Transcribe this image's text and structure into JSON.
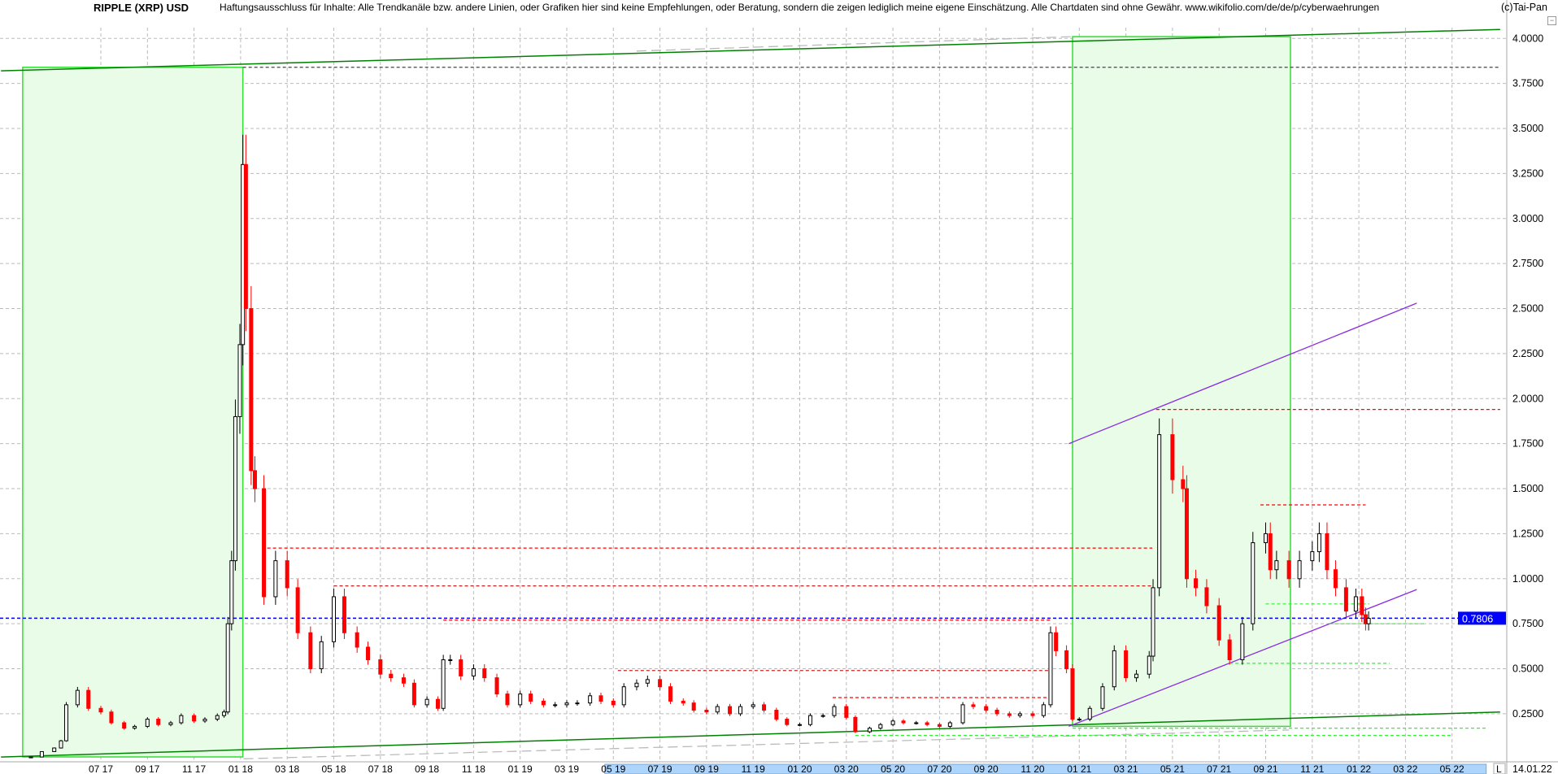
{
  "header": {
    "title": "RIPPLE (XRP) USD",
    "disclaimer": "Haftungsausschluss für Inhalte: Alle Trendkanäle bzw. andere Linien, oder Grafiken hier sind keine Empfehlungen, oder Beratung, sondern die zeigen lediglich meine eigene Einschätzung. Alle Chartdaten sind ohne Gewähr.  www.wikifolio.com/de/de/p/cyberwaehrungen",
    "copyright": "(c)Tai-Pan",
    "minimize_icon": "minus-box-icon"
  },
  "footer": {
    "scale_mode": "L",
    "last_date": "14.01.22"
  },
  "colors": {
    "up_candle": "#ffffff",
    "down_candle": "#ff0000",
    "zone_fill": "#e8fce8",
    "zone_border": "#33dd33",
    "trend_green": "#008000",
    "channel": "#8a2be2",
    "current_price": "#0000ff",
    "level_red": "#ff0000",
    "level_green": "#33ee33",
    "grid": "#bbbbbb",
    "axis_highlight": "#add4fa"
  },
  "chart_data": {
    "type": "candlestick",
    "title": "RIPPLE (XRP) USD",
    "ylim": [
      0,
      4.05
    ],
    "y_ticks": [
      "0.2500",
      "0.5000",
      "0.7500",
      "1.0000",
      "1.2500",
      "1.5000",
      "1.7500",
      "2.0000",
      "2.2500",
      "2.5000",
      "2.7500",
      "3.0000",
      "3.2500",
      "3.5000",
      "3.7500",
      "4.0000"
    ],
    "x_ticks": [
      {
        "date": "2017-07-01",
        "label": "07 17"
      },
      {
        "date": "2017-09-01",
        "label": "09 17"
      },
      {
        "date": "2017-11-01",
        "label": "11 17"
      },
      {
        "date": "2018-01-01",
        "label": "01 18"
      },
      {
        "date": "2018-03-01",
        "label": "03 18"
      },
      {
        "date": "2018-05-01",
        "label": "05 18"
      },
      {
        "date": "2018-07-01",
        "label": "07 18"
      },
      {
        "date": "2018-09-01",
        "label": "09 18"
      },
      {
        "date": "2018-11-01",
        "label": "11 18"
      },
      {
        "date": "2019-01-01",
        "label": "01 19"
      },
      {
        "date": "2019-03-01",
        "label": "03 19"
      },
      {
        "date": "2019-05-01",
        "label": "05 19"
      },
      {
        "date": "2019-07-01",
        "label": "07 19"
      },
      {
        "date": "2019-09-01",
        "label": "09 19"
      },
      {
        "date": "2019-11-01",
        "label": "11 19"
      },
      {
        "date": "2020-01-01",
        "label": "01 20"
      },
      {
        "date": "2020-03-01",
        "label": "03 20"
      },
      {
        "date": "2020-05-01",
        "label": "05 20"
      },
      {
        "date": "2020-07-01",
        "label": "07 20"
      },
      {
        "date": "2020-09-01",
        "label": "09 20"
      },
      {
        "date": "2020-11-01",
        "label": "11 20"
      },
      {
        "date": "2021-01-01",
        "label": "01 21"
      },
      {
        "date": "2021-03-01",
        "label": "03 21"
      },
      {
        "date": "2021-05-01",
        "label": "05 21"
      },
      {
        "date": "2021-07-01",
        "label": "07 21"
      },
      {
        "date": "2021-09-01",
        "label": "09 21"
      },
      {
        "date": "2021-11-01",
        "label": "11 21"
      },
      {
        "date": "2022-01-01",
        "label": "01 22"
      },
      {
        "date": "2022-03-01",
        "label": "03 22"
      },
      {
        "date": "2022-05-01",
        "label": "05 22"
      }
    ],
    "x_highlight": [
      "2019-04-20",
      "2022-06-15"
    ],
    "grid": true,
    "current_price": {
      "value": 0.7806,
      "label": "0.7806"
    },
    "closes": [
      [
        "2017-04-01",
        0.01
      ],
      [
        "2017-04-15",
        0.04
      ],
      [
        "2017-05-01",
        0.06
      ],
      [
        "2017-05-10",
        0.1
      ],
      [
        "2017-05-17",
        0.3
      ],
      [
        "2017-06-01",
        0.38
      ],
      [
        "2017-06-15",
        0.28
      ],
      [
        "2017-07-01",
        0.26
      ],
      [
        "2017-07-15",
        0.2
      ],
      [
        "2017-08-01",
        0.17
      ],
      [
        "2017-08-15",
        0.18
      ],
      [
        "2017-09-01",
        0.22
      ],
      [
        "2017-09-15",
        0.19
      ],
      [
        "2017-10-01",
        0.2
      ],
      [
        "2017-10-15",
        0.24
      ],
      [
        "2017-11-01",
        0.21
      ],
      [
        "2017-11-15",
        0.22
      ],
      [
        "2017-12-01",
        0.24
      ],
      [
        "2017-12-10",
        0.26
      ],
      [
        "2017-12-15",
        0.75
      ],
      [
        "2017-12-20",
        1.1
      ],
      [
        "2017-12-25",
        1.9
      ],
      [
        "2017-12-31",
        2.3
      ],
      [
        "2018-01-04",
        3.3
      ],
      [
        "2018-01-08",
        2.5
      ],
      [
        "2018-01-15",
        1.6
      ],
      [
        "2018-01-20",
        1.5
      ],
      [
        "2018-02-01",
        0.9
      ],
      [
        "2018-02-15",
        1.1
      ],
      [
        "2018-03-01",
        0.95
      ],
      [
        "2018-03-15",
        0.7
      ],
      [
        "2018-04-01",
        0.5
      ],
      [
        "2018-04-15",
        0.65
      ],
      [
        "2018-05-01",
        0.9
      ],
      [
        "2018-05-15",
        0.7
      ],
      [
        "2018-06-01",
        0.62
      ],
      [
        "2018-06-15",
        0.55
      ],
      [
        "2018-07-01",
        0.47
      ],
      [
        "2018-07-15",
        0.45
      ],
      [
        "2018-08-01",
        0.42
      ],
      [
        "2018-08-15",
        0.3
      ],
      [
        "2018-09-01",
        0.33
      ],
      [
        "2018-09-15",
        0.28
      ],
      [
        "2018-09-22",
        0.55
      ],
      [
        "2018-10-01",
        0.55
      ],
      [
        "2018-10-15",
        0.46
      ],
      [
        "2018-11-01",
        0.5
      ],
      [
        "2018-11-15",
        0.45
      ],
      [
        "2018-12-01",
        0.36
      ],
      [
        "2018-12-15",
        0.3
      ],
      [
        "2019-01-01",
        0.36
      ],
      [
        "2019-01-15",
        0.32
      ],
      [
        "2019-02-01",
        0.3
      ],
      [
        "2019-02-15",
        0.3
      ],
      [
        "2019-03-01",
        0.31
      ],
      [
        "2019-03-15",
        0.31
      ],
      [
        "2019-04-01",
        0.35
      ],
      [
        "2019-04-15",
        0.32
      ],
      [
        "2019-05-01",
        0.3
      ],
      [
        "2019-05-15",
        0.4
      ],
      [
        "2019-06-01",
        0.42
      ],
      [
        "2019-06-15",
        0.44
      ],
      [
        "2019-07-01",
        0.4
      ],
      [
        "2019-07-15",
        0.32
      ],
      [
        "2019-08-01",
        0.31
      ],
      [
        "2019-08-15",
        0.27
      ],
      [
        "2019-09-01",
        0.26
      ],
      [
        "2019-09-15",
        0.29
      ],
      [
        "2019-10-01",
        0.25
      ],
      [
        "2019-10-15",
        0.29
      ],
      [
        "2019-11-01",
        0.3
      ],
      [
        "2019-11-15",
        0.27
      ],
      [
        "2019-12-01",
        0.22
      ],
      [
        "2019-12-15",
        0.19
      ],
      [
        "2020-01-01",
        0.19
      ],
      [
        "2020-01-15",
        0.24
      ],
      [
        "2020-02-01",
        0.24
      ],
      [
        "2020-02-15",
        0.29
      ],
      [
        "2020-03-01",
        0.23
      ],
      [
        "2020-03-13",
        0.15
      ],
      [
        "2020-04-01",
        0.17
      ],
      [
        "2020-04-15",
        0.19
      ],
      [
        "2020-05-01",
        0.21
      ],
      [
        "2020-05-15",
        0.2
      ],
      [
        "2020-06-01",
        0.2
      ],
      [
        "2020-06-15",
        0.19
      ],
      [
        "2020-07-01",
        0.18
      ],
      [
        "2020-07-15",
        0.2
      ],
      [
        "2020-08-01",
        0.3
      ],
      [
        "2020-08-15",
        0.29
      ],
      [
        "2020-09-01",
        0.27
      ],
      [
        "2020-09-15",
        0.25
      ],
      [
        "2020-10-01",
        0.24
      ],
      [
        "2020-10-15",
        0.25
      ],
      [
        "2020-11-01",
        0.24
      ],
      [
        "2020-11-15",
        0.3
      ],
      [
        "2020-11-24",
        0.7
      ],
      [
        "2020-12-01",
        0.6
      ],
      [
        "2020-12-15",
        0.5
      ],
      [
        "2020-12-23",
        0.22
      ],
      [
        "2021-01-01",
        0.22
      ],
      [
        "2021-01-15",
        0.28
      ],
      [
        "2021-02-01",
        0.4
      ],
      [
        "2021-02-15",
        0.6
      ],
      [
        "2021-03-01",
        0.45
      ],
      [
        "2021-03-15",
        0.47
      ],
      [
        "2021-04-01",
        0.57
      ],
      [
        "2021-04-06",
        0.95
      ],
      [
        "2021-04-14",
        1.8
      ],
      [
        "2021-05-01",
        1.55
      ],
      [
        "2021-05-15",
        1.5
      ],
      [
        "2021-05-20",
        1.0
      ],
      [
        "2021-06-01",
        0.95
      ],
      [
        "2021-06-15",
        0.85
      ],
      [
        "2021-07-01",
        0.66
      ],
      [
        "2021-07-15",
        0.55
      ],
      [
        "2021-08-01",
        0.75
      ],
      [
        "2021-08-15",
        1.2
      ],
      [
        "2021-09-01",
        1.25
      ],
      [
        "2021-09-07",
        1.05
      ],
      [
        "2021-09-15",
        1.1
      ],
      [
        "2021-10-01",
        1.0
      ],
      [
        "2021-10-15",
        1.1
      ],
      [
        "2021-11-01",
        1.15
      ],
      [
        "2021-11-10",
        1.25
      ],
      [
        "2021-11-20",
        1.05
      ],
      [
        "2021-12-01",
        0.95
      ],
      [
        "2021-12-15",
        0.82
      ],
      [
        "2021-12-28",
        0.9
      ],
      [
        "2022-01-05",
        0.8
      ],
      [
        "2022-01-10",
        0.75
      ],
      [
        "2022-01-14",
        0.78
      ]
    ],
    "zones": [
      {
        "from": "2017-03-21",
        "to": "2018-01-04",
        "low": 0.0,
        "high": 3.84
      },
      {
        "from": "2020-12-23",
        "to": "2021-10-03",
        "low": 0.18,
        "high": 4.01
      }
    ],
    "trendlines": [
      {
        "kind": "support-green",
        "from": [
          "2017-02-21",
          3.82
        ],
        "to": [
          "2022-07-03",
          4.05
        ]
      },
      {
        "kind": "support-green",
        "from": [
          "2017-02-21",
          0.01
        ],
        "to": [
          "2022-07-03",
          0.26
        ]
      },
      {
        "kind": "gray-dashed",
        "from": [
          "2018-01-05",
          0.0
        ],
        "to": [
          "2021-10-01",
          0.16
        ]
      },
      {
        "kind": "gray-dashed",
        "from": [
          "2019-06-01",
          3.93
        ],
        "to": [
          "2020-12-23",
          4.01
        ]
      },
      {
        "kind": "channel",
        "from": [
          "2020-12-18",
          0.18
        ],
        "to": [
          "2022-03-16",
          0.94
        ]
      },
      {
        "kind": "channel",
        "from": [
          "2020-12-18",
          1.75
        ],
        "to": [
          "2022-03-16",
          2.53
        ]
      }
    ],
    "levels": [
      {
        "color": "black",
        "price": 3.84,
        "from": "2018-01-04",
        "to": "2022-07-03"
      },
      {
        "color": "red",
        "price": 1.94,
        "from": "2021-04-10",
        "to": "2022-07-03"
      },
      {
        "color": "red",
        "price": 1.17,
        "from": "2018-02-05",
        "to": "2021-04-05"
      },
      {
        "color": "darkred",
        "price": 0.96,
        "from": "2018-05-01",
        "to": "2021-04-05"
      },
      {
        "color": "red",
        "price": 0.77,
        "from": "2018-09-22",
        "to": "2020-11-24"
      },
      {
        "color": "darkred",
        "price": 0.49,
        "from": "2019-05-07",
        "to": "2020-11-24"
      },
      {
        "color": "red",
        "price": 0.34,
        "from": "2020-02-13",
        "to": "2020-11-24"
      },
      {
        "color": "red",
        "price": 1.41,
        "from": "2021-08-25",
        "to": "2022-01-10"
      },
      {
        "color": "green",
        "price": 0.86,
        "from": "2021-09-01",
        "to": "2022-01-15"
      },
      {
        "color": "green",
        "price": 0.75,
        "from": "2021-11-23",
        "to": "2022-03-28"
      },
      {
        "color": "green",
        "price": 0.53,
        "from": "2021-07-15",
        "to": "2022-02-10"
      },
      {
        "color": "green",
        "price": 0.17,
        "from": "2020-12-23",
        "to": "2022-06-15"
      },
      {
        "color": "green",
        "price": 0.13,
        "from": "2020-03-13",
        "to": "2022-05-01"
      }
    ]
  }
}
